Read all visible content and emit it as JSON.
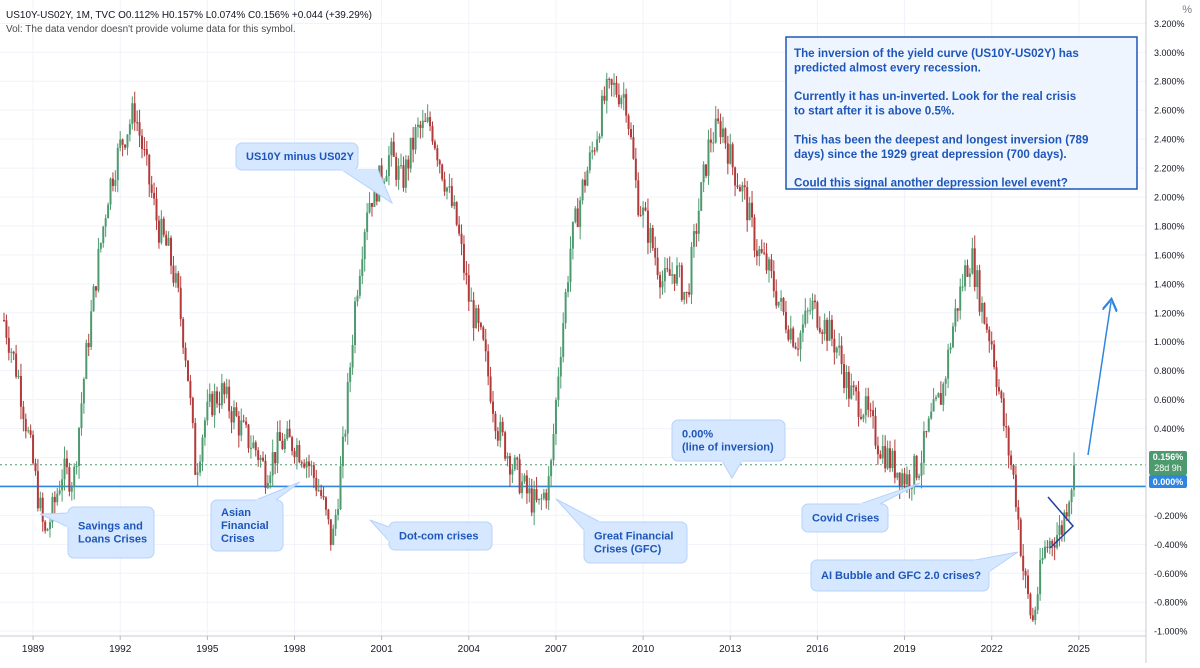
{
  "header": {
    "symbol_line": "US10Y-US02Y, 1M, TVC  O0.112%  H0.157%  L0.074%  C0.156%  +0.044 (+39.29%)",
    "volume_note": "Vol: The data vendor doesn't provide volume data for this symbol.",
    "scale_unit": "%"
  },
  "price_badge": {
    "value": "0.156%",
    "countdown": "28d 9h",
    "color": "#4e9a6f"
  },
  "zero_badge": {
    "value": "0.000%",
    "color": "#2e86de"
  },
  "annotations": {
    "info_box": [
      "The inversion of the yield curve (US10Y-US02Y) has",
      "predicted almost every recession.",
      "",
      "Currently it has un-inverted. Look for the real crisis",
      "to start after it is above 0.5%.",
      "",
      "This has been the deepest and longest inversion (789",
      "days) since the 1929 great depression (700 days).",
      "",
      "Could this signal another depression level event?"
    ],
    "callouts": [
      {
        "id": "callout-us10y-minus-us02y",
        "lines": [
          "US10Y minus US02Y"
        ]
      },
      {
        "id": "callout-savings-and-loans",
        "lines": [
          "Savings and",
          "Loans Crises"
        ]
      },
      {
        "id": "callout-asian-financial",
        "lines": [
          "Asian",
          "Financial",
          "Crises"
        ]
      },
      {
        "id": "callout-dot-com",
        "lines": [
          "Dot-com crises"
        ]
      },
      {
        "id": "callout-great-financial",
        "lines": [
          "Great Financial",
          "Crises (GFC)"
        ]
      },
      {
        "id": "callout-line-of-inversion",
        "lines": [
          "0.00%",
          "(line of inversion)"
        ]
      },
      {
        "id": "callout-covid",
        "lines": [
          "Covid Crises"
        ]
      },
      {
        "id": "callout-ai-bubble",
        "lines": [
          "AI Bubble and GFC 2.0 crises?"
        ]
      }
    ]
  },
  "colors": {
    "up": "#4e9a6f",
    "down": "#b23a3a",
    "accent": "#2e86de",
    "callout_fill": "#d6e8ff",
    "callout_text": "#1e56b8"
  },
  "chart_data": {
    "type": "line",
    "candle_style": "monthly candlesticks",
    "x_ticks": [
      "1989",
      "1992",
      "1995",
      "1998",
      "2001",
      "2004",
      "2007",
      "2010",
      "2013",
      "2016",
      "2019",
      "2022",
      "2025"
    ],
    "y_ticks": [
      "3.200%",
      "3.000%",
      "2.800%",
      "2.600%",
      "2.400%",
      "2.200%",
      "2.000%",
      "1.800%",
      "1.600%",
      "1.400%",
      "1.200%",
      "1.000%",
      "0.800%",
      "0.600%",
      "0.400%",
      "0.200%",
      "-0.200%",
      "-0.400%",
      "-0.600%",
      "-0.800%",
      "-1.000%"
    ],
    "ylim": [
      -1.13,
      3.23
    ],
    "xlim": [
      1988.1,
      2027.3
    ],
    "grid": true,
    "reference_line": 0.0,
    "series": [
      {
        "x": [
          1988.0,
          1988.5,
          1989.0,
          1989.4,
          1989.7,
          1990.0,
          1990.4,
          1990.8,
          1991.2,
          1991.6,
          1992.0,
          1992.5,
          1992.9,
          1993.3,
          1993.7,
          1994.0,
          1994.3,
          1994.6,
          1994.9,
          1995.2,
          1995.5,
          1995.9,
          1996.3,
          1996.7,
          1997.0,
          1997.5,
          1998.0,
          1998.4,
          1998.9,
          1999.3,
          1999.7,
          2000.1,
          2000.5,
          2000.9,
          2001.3,
          2001.7,
          2002.2,
          2002.7,
          2003.2,
          2003.6,
          2004.0,
          2004.5,
          2005.0,
          2005.5,
          2006.0,
          2006.4,
          2006.8,
          2007.1,
          2007.5,
          2007.9,
          2008.3,
          2008.7,
          2009.0,
          2009.4,
          2009.8,
          2010.2,
          2010.7,
          2011.1,
          2011.5,
          2011.9,
          2012.3,
          2012.7,
          2013.1,
          2013.5,
          2013.9,
          2014.3,
          2014.8,
          2015.3,
          2015.8,
          2016.3,
          2016.7,
          2017.1,
          2017.6,
          2018.1,
          2018.6,
          2019.1,
          2019.5,
          2019.9,
          2020.3,
          2020.7,
          2021.1,
          2021.3,
          2021.7,
          2022.0,
          2022.4,
          2022.8,
          2023.1,
          2023.4,
          2023.8,
          2024.1,
          2024.4,
          2024.7,
          2024.9
        ],
        "values": [
          1.15,
          0.75,
          0.15,
          -0.35,
          -0.15,
          0.1,
          0.05,
          0.85,
          1.5,
          2.05,
          2.35,
          2.6,
          2.2,
          1.8,
          1.6,
          1.3,
          0.85,
          0.1,
          0.45,
          0.6,
          0.65,
          0.5,
          0.35,
          0.25,
          0.1,
          0.3,
          0.3,
          0.2,
          -0.05,
          -0.4,
          0.3,
          1.3,
          1.95,
          2.1,
          2.3,
          2.1,
          2.45,
          2.5,
          2.1,
          1.8,
          1.3,
          0.95,
          0.4,
          0.15,
          -0.05,
          -0.15,
          0.05,
          0.85,
          1.65,
          2.05,
          2.35,
          2.7,
          2.75,
          2.7,
          2.0,
          1.75,
          1.4,
          1.5,
          1.3,
          1.9,
          2.4,
          2.5,
          2.2,
          2.0,
          1.65,
          1.5,
          1.2,
          1.0,
          1.25,
          1.1,
          0.95,
          0.65,
          0.55,
          0.3,
          0.15,
          0.05,
          0.15,
          0.45,
          0.65,
          1.15,
          1.5,
          1.6,
          1.2,
          1.0,
          0.45,
          0.0,
          -0.6,
          -0.95,
          -0.45,
          -0.35,
          -0.3,
          0.0,
          0.15
        ]
      }
    ]
  }
}
